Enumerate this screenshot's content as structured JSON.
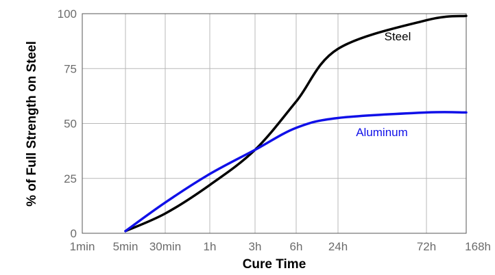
{
  "chart_data": {
    "type": "line",
    "xlabel": "Cure Time",
    "ylabel": "% of Full Strength on Steel",
    "x_categories": [
      "1min",
      "5min",
      "30min",
      "1h",
      "3h",
      "6h",
      "24h",
      "72h",
      "168h"
    ],
    "ylim": [
      0,
      100
    ],
    "yticks": [
      0,
      25,
      50,
      75,
      100
    ],
    "grid": true,
    "series": [
      {
        "name": "Steel",
        "color": "#000000",
        "points": [
          {
            "x": "5min",
            "y": 1
          },
          {
            "x": "30min",
            "y": 9
          },
          {
            "x": "1h",
            "y": 22
          },
          {
            "x": "3h",
            "y": 38
          },
          {
            "x": "6h",
            "y": 60
          },
          {
            "x": "24h",
            "y": 84
          },
          {
            "x": "72h",
            "y": 97
          },
          {
            "x": "168h",
            "y": 99
          }
        ]
      },
      {
        "name": "Aluminum",
        "color": "#1010e8",
        "points": [
          {
            "x": "5min",
            "y": 1
          },
          {
            "x": "30min",
            "y": 14
          },
          {
            "x": "1h",
            "y": 27
          },
          {
            "x": "3h",
            "y": 38
          },
          {
            "x": "6h",
            "y": 48
          },
          {
            "x": "24h",
            "y": 52.5
          },
          {
            "x": "72h",
            "y": 55
          },
          {
            "x": "168h",
            "y": 55
          }
        ]
      }
    ]
  }
}
